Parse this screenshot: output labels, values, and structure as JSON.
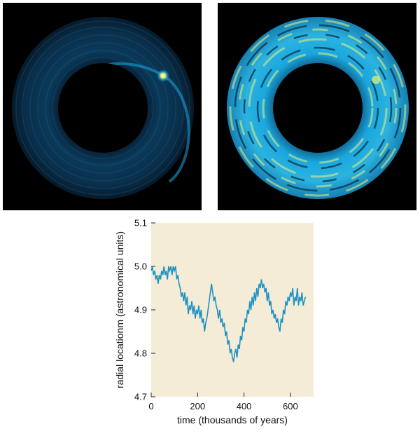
{
  "images": {
    "left": {
      "subject": "protoplanetary disk density map (faint ring with planet spiral)"
    },
    "right": {
      "subject": "protoplanetary disk density map (bright turbulent ring)"
    }
  },
  "colors": {
    "chart_background": "#f4ecd6",
    "line": "#1f92c4",
    "disk_dark": "#000000",
    "disk_blue_dim": "#0b3a5a",
    "disk_blue_bright": "#1aa7de",
    "disk_yellow": "#e8f07a"
  },
  "chart_data": {
    "type": "line",
    "title": "",
    "xlabel": "time (thousands of years)",
    "ylabel": "radial locationm (astronomical units)",
    "xlim": [
      0,
      700
    ],
    "ylim": [
      4.7,
      5.1
    ],
    "x_ticks": [
      "0",
      "200",
      "400",
      "600"
    ],
    "y_ticks": [
      "4.7",
      "4.8",
      "4.9",
      "5.0",
      "5.1"
    ],
    "grid": false,
    "series": [
      {
        "x": [
          0,
          5,
          10,
          15,
          20,
          25,
          30,
          35,
          40,
          45,
          50,
          55,
          60,
          65,
          70,
          75,
          80,
          85,
          90,
          95,
          100,
          105,
          110,
          115,
          120,
          125,
          130,
          135,
          140,
          145,
          150,
          155,
          160,
          165,
          170,
          175,
          180,
          185,
          190,
          195,
          200,
          205,
          210,
          215,
          220,
          225,
          230,
          235,
          240,
          245,
          250,
          255,
          260,
          265,
          270,
          275,
          280,
          285,
          290,
          295,
          300,
          305,
          310,
          315,
          320,
          325,
          330,
          335,
          340,
          345,
          350,
          355,
          360,
          365,
          370,
          375,
          380,
          385,
          390,
          395,
          400,
          405,
          410,
          415,
          420,
          425,
          430,
          435,
          440,
          445,
          450,
          455,
          460,
          465,
          470,
          475,
          480,
          485,
          490,
          495,
          500,
          505,
          510,
          515,
          520,
          525,
          530,
          535,
          540,
          545,
          550,
          555,
          560,
          565,
          570,
          575,
          580,
          585,
          590,
          595,
          600,
          605,
          610,
          615,
          620,
          625,
          630,
          635,
          640,
          645,
          650,
          655,
          660,
          665
        ],
        "values": [
          4.99,
          5.0,
          4.98,
          4.99,
          4.97,
          4.98,
          4.96,
          4.98,
          4.97,
          4.99,
          4.98,
          5.0,
          4.98,
          4.99,
          4.97,
          5.0,
          4.99,
          5.0,
          4.98,
          5.0,
          4.99,
          5.0,
          4.97,
          4.98,
          4.96,
          4.95,
          4.93,
          4.94,
          4.92,
          4.94,
          4.91,
          4.93,
          4.89,
          4.91,
          4.9,
          4.92,
          4.89,
          4.91,
          4.88,
          4.9,
          4.89,
          4.91,
          4.88,
          4.9,
          4.87,
          4.88,
          4.85,
          4.87,
          4.88,
          4.9,
          4.92,
          4.94,
          4.96,
          4.94,
          4.92,
          4.93,
          4.91,
          4.9,
          4.88,
          4.9,
          4.87,
          4.88,
          4.86,
          4.87,
          4.84,
          4.85,
          4.82,
          4.83,
          4.8,
          4.81,
          4.79,
          4.78,
          4.8,
          4.81,
          4.79,
          4.82,
          4.81,
          4.84,
          4.83,
          4.86,
          4.85,
          4.88,
          4.87,
          4.9,
          4.89,
          4.92,
          4.9,
          4.93,
          4.91,
          4.94,
          4.92,
          4.95,
          4.93,
          4.96,
          4.95,
          4.97,
          4.95,
          4.96,
          4.94,
          4.95,
          4.92,
          4.94,
          4.91,
          4.92,
          4.89,
          4.9,
          4.88,
          4.89,
          4.87,
          4.88,
          4.86,
          4.85,
          4.88,
          4.87,
          4.9,
          4.89,
          4.92,
          4.91,
          4.93,
          4.92,
          4.94,
          4.93,
          4.95,
          4.91,
          4.93,
          4.92,
          4.95,
          4.91,
          4.93,
          4.92,
          4.94,
          4.91,
          4.92,
          4.93
        ]
      }
    ]
  }
}
